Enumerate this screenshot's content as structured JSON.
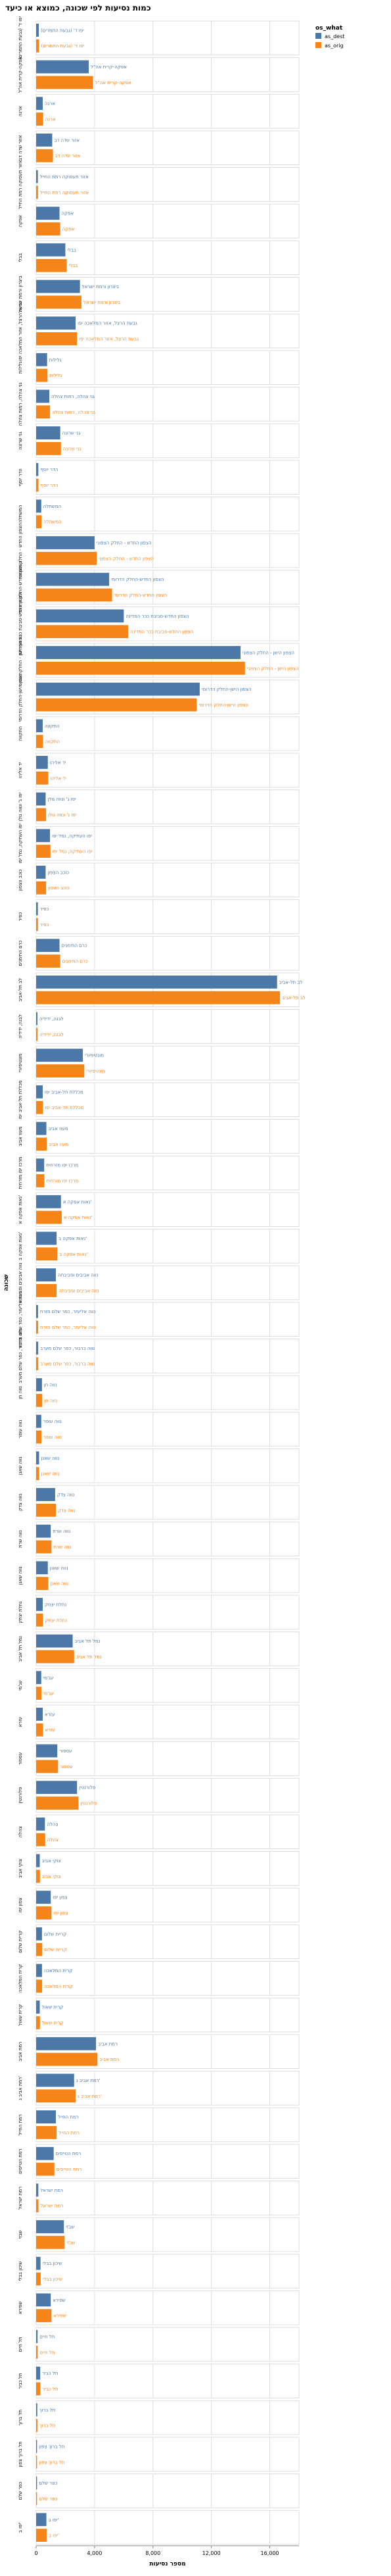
{
  "chart_data": {
    "type": "bar",
    "orientation": "horizontal",
    "faceted": true,
    "title": "כמות נסיעות לפי שכונה, כמוצא או כיעד",
    "xlabel": "מספר נסיעות",
    "ylabel": "שכונה",
    "xlim": [
      0,
      18000
    ],
    "xticks": [
      "0",
      "4,000",
      "8,000",
      "12,000",
      "16,000"
    ],
    "xtick_values": [
      0,
      4000,
      8000,
      12000,
      16000
    ],
    "grid": true,
    "legend": {
      "title": "os_what",
      "position": "top-right",
      "entries": [
        {
          "label": "as_dest",
          "color": "#4c78a8"
        },
        {
          "label": "as_orig",
          "color": "#f58518"
        }
      ]
    },
    "series": [
      {
        "name": "as_dest",
        "color": "#4c78a8"
      },
      {
        "name": "as_orig",
        "color": "#f58518"
      }
    ],
    "categories": [
      {
        "name": "יפו ד' (גבעת התמרים)",
        "as_dest": 180,
        "as_orig": 200
      },
      {
        "name": "אפקה-קרית אה\"ל",
        "as_dest": 3600,
        "as_orig": 3900
      },
      {
        "name": "ארנה",
        "as_dest": 450,
        "as_orig": 480
      },
      {
        "name": "אזור שדה דב",
        "as_dest": 1100,
        "as_orig": 1150
      },
      {
        "name": "אזור תעסוקה רמת החייל",
        "as_dest": 120,
        "as_orig": 130
      },
      {
        "name": "אפקה",
        "as_dest": 1600,
        "as_orig": 1650
      },
      {
        "name": "בבלי",
        "as_dest": 2000,
        "as_orig": 2100
      },
      {
        "name": "ביצרון ורמת ישראל",
        "as_dest": 3000,
        "as_orig": 3100
      },
      {
        "name": "גבעת הרצל, אזור המלאכה יפו",
        "as_dest": 2700,
        "as_orig": 2800
      },
      {
        "name": "גלילות",
        "as_dest": 750,
        "as_orig": 780
      },
      {
        "name": "גני צהלה, רמות צהלה",
        "as_dest": 900,
        "as_orig": 950
      },
      {
        "name": "גני שרונה",
        "as_dest": 1650,
        "as_orig": 1700
      },
      {
        "name": "הדר יוסף",
        "as_dest": 150,
        "as_orig": 160
      },
      {
        "name": "המשתלה",
        "as_dest": 350,
        "as_orig": 370
      },
      {
        "name": "הצפון החדש - החלק הצפוני",
        "as_dest": 4000,
        "as_orig": 4150
      },
      {
        "name": "הצפון החדש-החלק הדרומי",
        "as_dest": 5000,
        "as_orig": 5200
      },
      {
        "name": "הצפון החדש-סביבת ככר המדינה",
        "as_dest": 6000,
        "as_orig": 6300
      },
      {
        "name": "הצפון הישן - החלק הצפוני",
        "as_dest": 14000,
        "as_orig": 14300
      },
      {
        "name": "הצפון הישן-החלק הדרומי",
        "as_dest": 11200,
        "as_orig": 11000
      },
      {
        "name": "התקווה",
        "as_dest": 450,
        "as_orig": 470
      },
      {
        "name": "יד אליהו",
        "as_dest": 800,
        "as_orig": 830
      },
      {
        "name": "יפו ג' ונווה גולן",
        "as_dest": 650,
        "as_orig": 680
      },
      {
        "name": "יפו העתיקה, נמל יפו",
        "as_dest": 950,
        "as_orig": 980
      },
      {
        "name": "כוכב הצפון",
        "as_dest": 650,
        "as_orig": 680
      },
      {
        "name": "כפיר",
        "as_dest": 120,
        "as_orig": 125
      },
      {
        "name": "כרם התימנים",
        "as_dest": 1600,
        "as_orig": 1650
      },
      {
        "name": "לב תל-אביב",
        "as_dest": 16500,
        "as_orig": 16700
      },
      {
        "name": "לבנה, ידידיה",
        "as_dest": 90,
        "as_orig": 95
      },
      {
        "name": "מונטיפיורי",
        "as_dest": 3200,
        "as_orig": 3300
      },
      {
        "name": "מכללת תל-אביב יפו",
        "as_dest": 450,
        "as_orig": 470
      },
      {
        "name": "מעוז אביב",
        "as_dest": 700,
        "as_orig": 730
      },
      {
        "name": "מרכז יפו מזרחית",
        "as_dest": 550,
        "as_orig": 560
      },
      {
        "name": "נאות אפקה א'",
        "as_dest": 1700,
        "as_orig": 1750
      },
      {
        "name": "נאות אפקה ב'",
        "as_dest": 1400,
        "as_orig": 1450
      },
      {
        "name": "נווה אביבים וסביבתה",
        "as_dest": 1350,
        "as_orig": 1400
      },
      {
        "name": "נווה אליעזר, כפר שלם מזרח",
        "as_dest": 130,
        "as_orig": 135
      },
      {
        "name": "נווה ברבור, כפר שלם מערב",
        "as_dest": 140,
        "as_orig": 145
      },
      {
        "name": "נווה חן",
        "as_dest": 400,
        "as_orig": 420
      },
      {
        "name": "נווה עופר",
        "as_dest": 350,
        "as_orig": 360
      },
      {
        "name": "נווה שאנן",
        "as_dest": 200,
        "as_orig": 210
      },
      {
        "name": "נווה צדק",
        "as_dest": 1300,
        "as_orig": 1350
      },
      {
        "name": "נווה שרת",
        "as_dest": 1000,
        "as_orig": 1050
      },
      {
        "name": "נווה שאנן",
        "as_dest": 800,
        "as_orig": 830
      },
      {
        "name": "נחלת יצחק",
        "as_dest": 450,
        "as_orig": 470
      },
      {
        "name": "נמל תל אביב",
        "as_dest": 2500,
        "as_orig": 2600
      },
      {
        "name": "עג'מי",
        "as_dest": 350,
        "as_orig": 360
      },
      {
        "name": "עזרא",
        "as_dest": 450,
        "as_orig": 470
      },
      {
        "name": "עספור",
        "as_dest": 1450,
        "as_orig": 1500
      },
      {
        "name": "פלורנטין",
        "as_dest": 2800,
        "as_orig": 2900
      },
      {
        "name": "צהלה",
        "as_dest": 600,
        "as_orig": 620
      },
      {
        "name": "צוקי אביב",
        "as_dest": 250,
        "as_orig": 260
      },
      {
        "name": "צפון יפו",
        "as_dest": 1000,
        "as_orig": 1050
      },
      {
        "name": "קריית שלום",
        "as_dest": 400,
        "as_orig": 420
      },
      {
        "name": "קרית המלאכה",
        "as_dest": 400,
        "as_orig": 410
      },
      {
        "name": "קרית שאול",
        "as_dest": 250,
        "as_orig": 260
      },
      {
        "name": "רמת אביב",
        "as_dest": 4100,
        "as_orig": 4200
      },
      {
        "name": "רמת אביב ג'",
        "as_dest": 2600,
        "as_orig": 2700
      },
      {
        "name": "רמת החייל",
        "as_dest": 1350,
        "as_orig": 1400
      },
      {
        "name": "רמת הטייסים",
        "as_dest": 1200,
        "as_orig": 1250
      },
      {
        "name": "רמת ישראל",
        "as_dest": 150,
        "as_orig": 160
      },
      {
        "name": "שבזי",
        "as_dest": 1900,
        "as_orig": 1950
      },
      {
        "name": "שיכון בבלי",
        "as_dest": 300,
        "as_orig": 310
      },
      {
        "name": "שפירא",
        "as_dest": 1000,
        "as_orig": 1050
      },
      {
        "name": "תל חיים",
        "as_dest": 100,
        "as_orig": 105
      },
      {
        "name": "תל כביר",
        "as_dest": 280,
        "as_orig": 290
      },
      {
        "name": "תל ברוך",
        "as_dest": 80,
        "as_orig": 85
      },
      {
        "name": "תל ברוך צפון",
        "as_dest": 60,
        "as_orig": 62
      },
      {
        "name": "כפר שלם",
        "as_dest": 60,
        "as_orig": 62
      },
      {
        "name": "יפו ב'",
        "as_dest": 700,
        "as_orig": 720
      }
    ]
  }
}
